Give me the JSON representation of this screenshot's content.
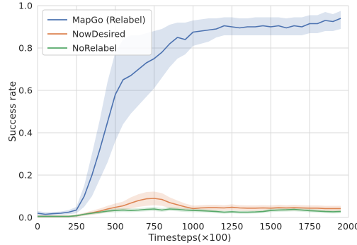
{
  "chart_data": {
    "type": "line",
    "title": "",
    "xlabel": "Timesteps(×100)",
    "ylabel": "Success rate",
    "xlim": [
      0,
      2000
    ],
    "ylim": [
      0,
      1.0
    ],
    "xticks": [
      0,
      250,
      500,
      750,
      1000,
      1250,
      1500,
      1750,
      2000
    ],
    "yticks": [
      0.0,
      0.2,
      0.4,
      0.6,
      0.8,
      1.0
    ],
    "xtick_labels": [
      "0",
      "250",
      "500",
      "750",
      "1000",
      "1250",
      "1500",
      "1750",
      "2000"
    ],
    "ytick_labels": [
      "0.0",
      "0.2",
      "0.4",
      "0.6",
      "0.8",
      "1.0"
    ],
    "grid": true,
    "legend_position": "top-left",
    "x": [
      0,
      50,
      100,
      150,
      200,
      250,
      300,
      350,
      400,
      450,
      500,
      550,
      600,
      650,
      700,
      750,
      800,
      850,
      900,
      950,
      1000,
      1050,
      1100,
      1150,
      1200,
      1250,
      1300,
      1350,
      1400,
      1450,
      1500,
      1550,
      1600,
      1650,
      1700,
      1750,
      1800,
      1850,
      1900,
      1950
    ],
    "series": [
      {
        "name": "MapGo (Relabel)",
        "color": "#4c72b0",
        "values": [
          0.02,
          0.015,
          0.018,
          0.02,
          0.025,
          0.035,
          0.1,
          0.2,
          0.32,
          0.45,
          0.58,
          0.65,
          0.67,
          0.7,
          0.73,
          0.75,
          0.78,
          0.82,
          0.85,
          0.84,
          0.875,
          0.88,
          0.885,
          0.89,
          0.905,
          0.9,
          0.895,
          0.9,
          0.9,
          0.905,
          0.9,
          0.905,
          0.895,
          0.905,
          0.9,
          0.915,
          0.915,
          0.93,
          0.925,
          0.94
        ],
        "lower": [
          0.01,
          0.005,
          0.01,
          0.012,
          0.015,
          0.02,
          0.05,
          0.1,
          0.18,
          0.26,
          0.36,
          0.44,
          0.49,
          0.53,
          0.57,
          0.61,
          0.66,
          0.71,
          0.75,
          0.77,
          0.81,
          0.82,
          0.83,
          0.85,
          0.86,
          0.86,
          0.86,
          0.86,
          0.86,
          0.86,
          0.86,
          0.86,
          0.86,
          0.86,
          0.86,
          0.87,
          0.87,
          0.88,
          0.88,
          0.89
        ],
        "upper": [
          0.03,
          0.025,
          0.026,
          0.028,
          0.035,
          0.05,
          0.15,
          0.3,
          0.46,
          0.64,
          0.78,
          0.84,
          0.86,
          0.86,
          0.87,
          0.88,
          0.89,
          0.91,
          0.92,
          0.92,
          0.93,
          0.935,
          0.94,
          0.94,
          0.945,
          0.945,
          0.94,
          0.94,
          0.945,
          0.945,
          0.945,
          0.945,
          0.94,
          0.945,
          0.945,
          0.955,
          0.955,
          0.97,
          0.96,
          0.975
        ]
      },
      {
        "name": "NowDesired",
        "color": "#dd8452",
        "values": [
          0.005,
          0.005,
          0.005,
          0.005,
          0.005,
          0.008,
          0.015,
          0.022,
          0.03,
          0.04,
          0.048,
          0.055,
          0.068,
          0.08,
          0.088,
          0.09,
          0.085,
          0.07,
          0.06,
          0.05,
          0.042,
          0.045,
          0.046,
          0.046,
          0.045,
          0.048,
          0.045,
          0.044,
          0.044,
          0.045,
          0.044,
          0.046,
          0.045,
          0.046,
          0.045,
          0.044,
          0.044,
          0.042,
          0.042,
          0.042
        ],
        "lower": [
          0.0,
          0.0,
          0.0,
          0.0,
          0.0,
          0.002,
          0.008,
          0.012,
          0.018,
          0.025,
          0.03,
          0.035,
          0.042,
          0.05,
          0.055,
          0.058,
          0.055,
          0.045,
          0.04,
          0.035,
          0.03,
          0.032,
          0.032,
          0.032,
          0.032,
          0.034,
          0.032,
          0.031,
          0.031,
          0.032,
          0.031,
          0.033,
          0.032,
          0.033,
          0.032,
          0.031,
          0.031,
          0.03,
          0.03,
          0.03
        ],
        "upper": [
          0.01,
          0.01,
          0.01,
          0.01,
          0.01,
          0.014,
          0.022,
          0.032,
          0.042,
          0.055,
          0.066,
          0.075,
          0.095,
          0.11,
          0.12,
          0.122,
          0.115,
          0.095,
          0.08,
          0.066,
          0.056,
          0.058,
          0.06,
          0.06,
          0.058,
          0.062,
          0.058,
          0.057,
          0.057,
          0.058,
          0.057,
          0.06,
          0.058,
          0.06,
          0.058,
          0.057,
          0.057,
          0.055,
          0.055,
          0.055
        ]
      },
      {
        "name": "NoRelabel",
        "color": "#55a868",
        "values": [
          0.005,
          0.005,
          0.005,
          0.005,
          0.005,
          0.008,
          0.015,
          0.02,
          0.025,
          0.03,
          0.033,
          0.035,
          0.033,
          0.035,
          0.038,
          0.04,
          0.035,
          0.04,
          0.038,
          0.035,
          0.033,
          0.032,
          0.03,
          0.028,
          0.025,
          0.027,
          0.025,
          0.025,
          0.026,
          0.028,
          0.033,
          0.035,
          0.036,
          0.038,
          0.035,
          0.032,
          0.03,
          0.028,
          0.027,
          0.028
        ],
        "lower": [
          0.0,
          0.0,
          0.0,
          0.0,
          0.0,
          0.003,
          0.01,
          0.014,
          0.018,
          0.022,
          0.024,
          0.026,
          0.025,
          0.027,
          0.029,
          0.03,
          0.027,
          0.031,
          0.029,
          0.026,
          0.025,
          0.024,
          0.022,
          0.02,
          0.018,
          0.02,
          0.018,
          0.018,
          0.019,
          0.021,
          0.025,
          0.027,
          0.028,
          0.029,
          0.027,
          0.024,
          0.022,
          0.02,
          0.019,
          0.02
        ],
        "upper": [
          0.01,
          0.01,
          0.01,
          0.01,
          0.01,
          0.013,
          0.02,
          0.026,
          0.032,
          0.038,
          0.042,
          0.044,
          0.042,
          0.044,
          0.047,
          0.05,
          0.044,
          0.05,
          0.047,
          0.044,
          0.042,
          0.04,
          0.038,
          0.036,
          0.032,
          0.034,
          0.032,
          0.032,
          0.033,
          0.035,
          0.041,
          0.043,
          0.044,
          0.047,
          0.043,
          0.04,
          0.038,
          0.036,
          0.035,
          0.036
        ]
      }
    ]
  }
}
